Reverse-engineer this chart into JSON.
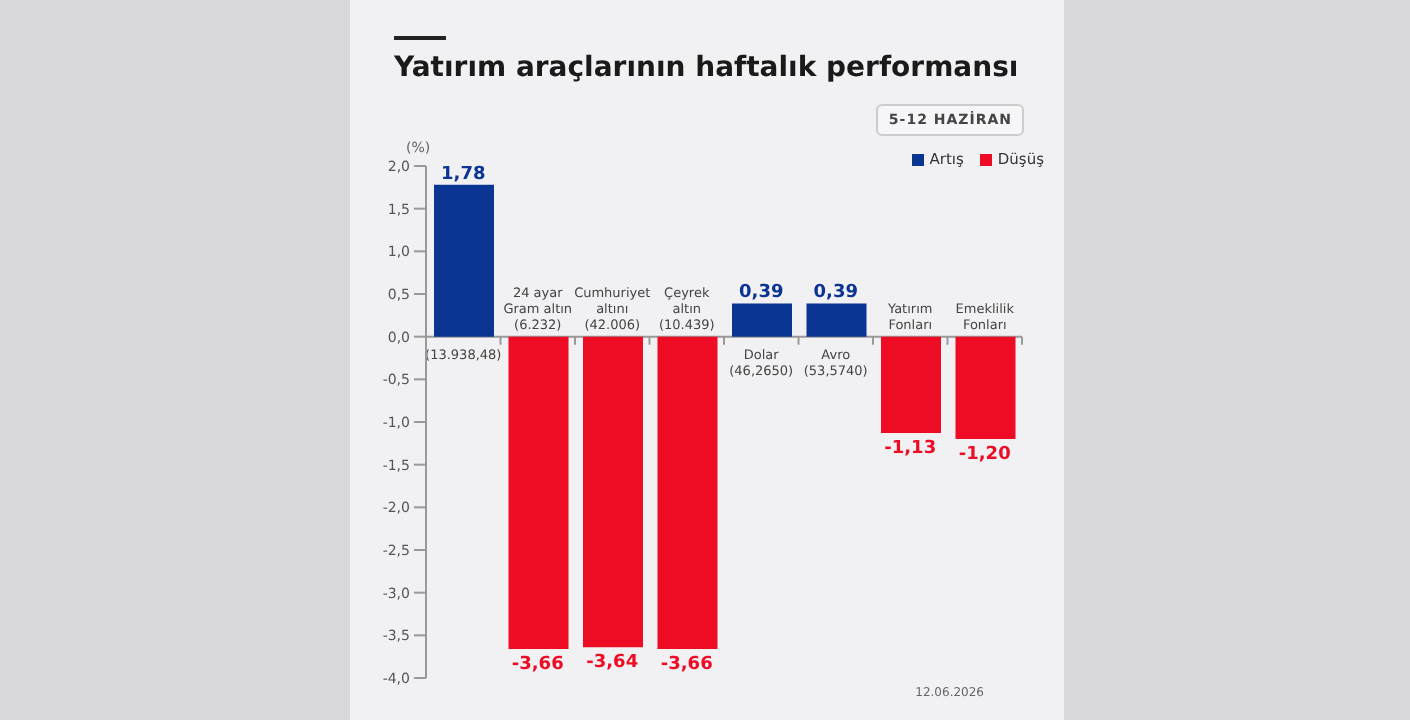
{
  "chart_data": {
    "type": "bar",
    "title": "Yatırım araçlarının haftalık performansı",
    "subtitle": "5-12 HAZİRAN",
    "ylabel": "(%)",
    "categories": [
      "(13.938,48)",
      "24 ayar\nGram altın\n(6.232)",
      "Cumhuriyet\naltını\n(42.006)",
      "Çeyrek\naltın\n(10.439)",
      "Dolar\n(46,2650)",
      "Avro\n(53,5740)",
      "Yatırım\nFonları",
      "Emeklilik\nFonları"
    ],
    "series": [
      {
        "name": "Artış",
        "color": "#0b3592",
        "values": [
          1.78,
          null,
          null,
          null,
          0.39,
          0.39,
          null,
          null
        ],
        "value_labels": [
          "1,78",
          null,
          null,
          null,
          "0,39",
          "0,39",
          null,
          null
        ]
      },
      {
        "name": "Düşüş",
        "color": "#ed0c24",
        "values": [
          null,
          -3.66,
          -3.64,
          -3.66,
          null,
          null,
          -1.13,
          -1.2
        ],
        "value_labels": [
          null,
          "-3,66",
          "-3,64",
          "-3,66",
          null,
          null,
          "-1,13",
          "-1,20"
        ]
      }
    ],
    "stacked": true,
    "ylim": [
      -4,
      2
    ],
    "yticks": [
      {
        "value": 2,
        "label": "2,0"
      },
      {
        "value": 1.5,
        "label": "1,5"
      },
      {
        "value": 1,
        "label": "1,0"
      },
      {
        "value": 0.5,
        "label": "0,5"
      },
      {
        "value": 0,
        "label": "0,0"
      },
      {
        "value": -0.5,
        "label": "-0,5"
      },
      {
        "value": -1,
        "label": "-1,0"
      },
      {
        "value": -1.5,
        "label": "-1,5"
      },
      {
        "value": -2,
        "label": "-2,0"
      },
      {
        "value": -2.5,
        "label": "-2,5"
      },
      {
        "value": -3,
        "label": "-3,0"
      },
      {
        "value": -3.5,
        "label": "-3,5"
      },
      {
        "value": -4,
        "label": "-4,0"
      }
    ],
    "grid": false,
    "legend": "top right",
    "annotations": [
      "12.06.2026"
    ]
  }
}
